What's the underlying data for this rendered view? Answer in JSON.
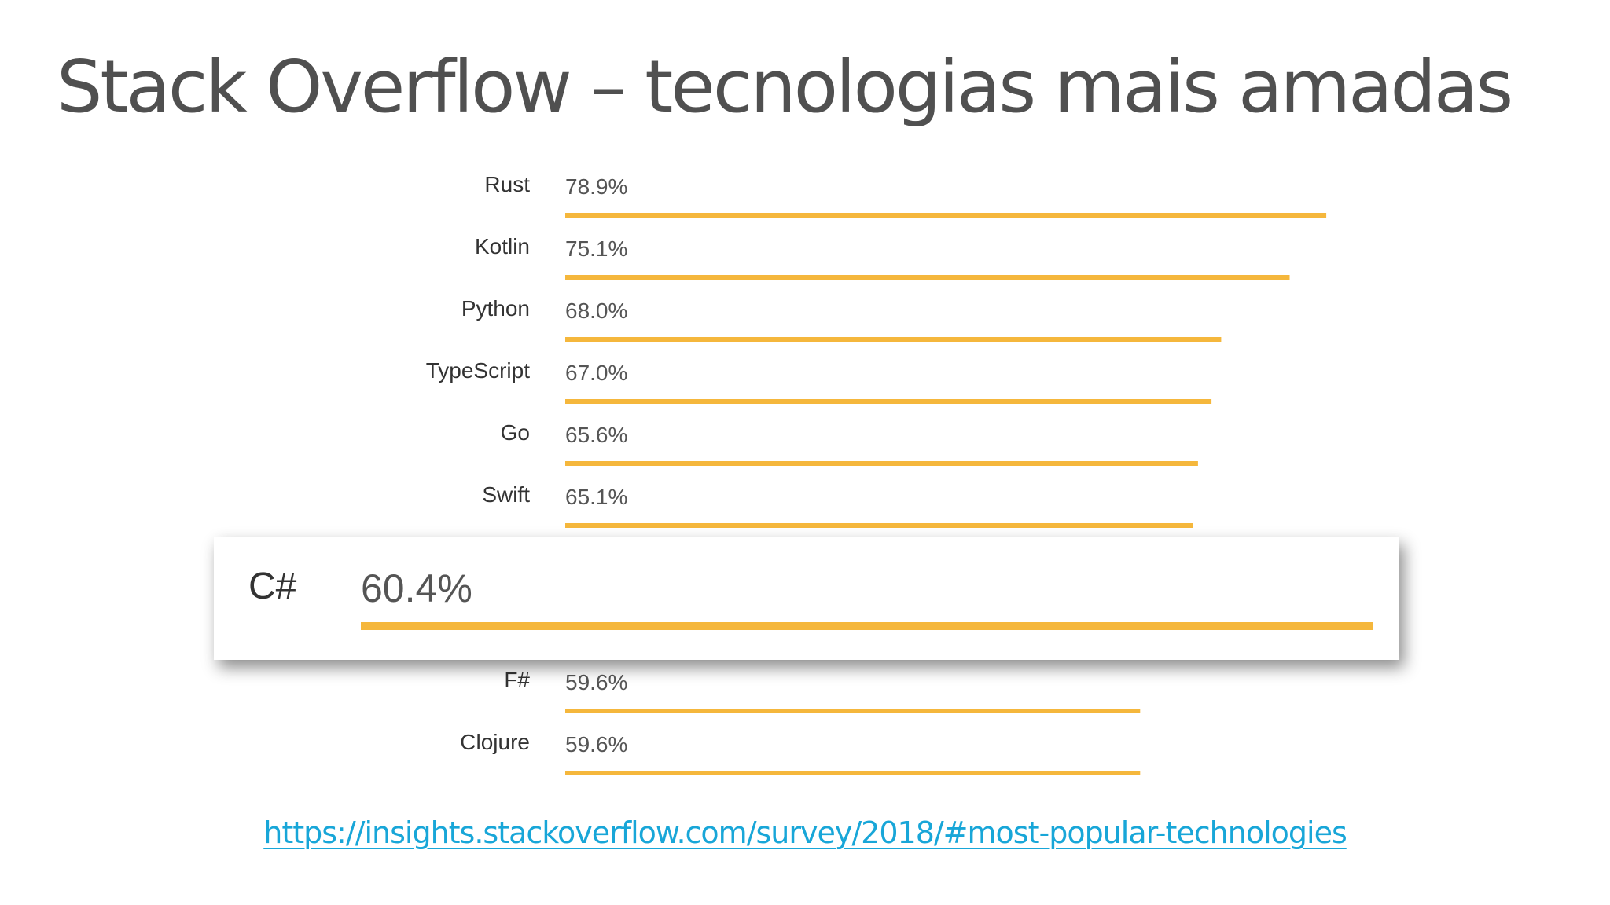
{
  "slide": {
    "title": "Stack Overflow – tecnologias mais amadas",
    "source_link": "https://insights.stackoverflow.com/survey/2018/#most-popular-technologies"
  },
  "colors": {
    "bar": "#F5B73C",
    "label": "#333333",
    "value": "#555555",
    "title": "#505050",
    "link": "#18A6D8"
  },
  "chart_data": {
    "type": "bar",
    "orientation": "horizontal",
    "title": "",
    "xlabel": "",
    "ylabel": "",
    "unit": "%",
    "xlim": [
      0,
      100
    ],
    "grid": false,
    "legend": "none",
    "categories": [
      "Rust",
      "Kotlin",
      "Python",
      "TypeScript",
      "Go",
      "Swift",
      "C#",
      "F#",
      "Clojure"
    ],
    "values": [
      78.9,
      75.1,
      68.0,
      67.0,
      65.6,
      65.1,
      60.4,
      59.6,
      59.6
    ],
    "value_labels": [
      "78.9%",
      "75.1%",
      "68.0%",
      "67.0%",
      "65.6%",
      "65.1%",
      "60.4%",
      "59.6%",
      "59.6%"
    ],
    "highlighted_category": "C#"
  }
}
